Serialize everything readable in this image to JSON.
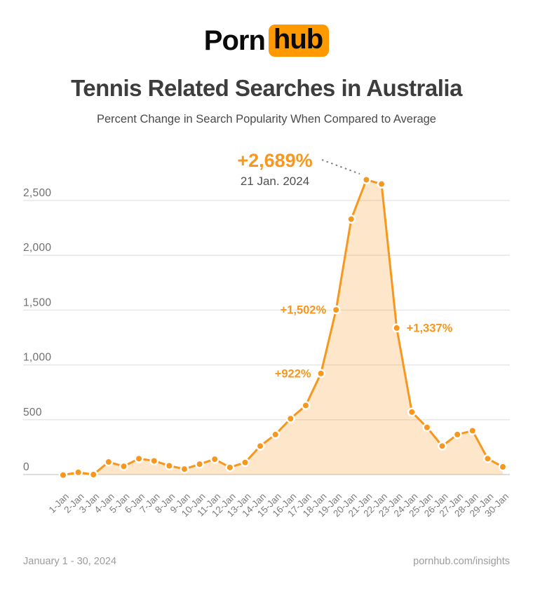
{
  "logo": {
    "part1": "Porn",
    "part2": "hub"
  },
  "header": {
    "title": "Tennis Related Searches in Australia",
    "subtitle": "Percent Change in Search Popularity When Compared to Average"
  },
  "footer": {
    "date_range": "January 1 - 30, 2024",
    "site": "pornhub.com/insights"
  },
  "colors": {
    "accent_orange": "#F7971D",
    "logo_orange": "#FF9900",
    "area_fill": "rgba(247,151,29,0.24)",
    "title_text": "#3D3D3D",
    "subtitle_text": "#4A4A4A",
    "axis_label_text": "#6F6F6F",
    "x_tick_text": "#7C7C7C",
    "footer_text": "#9C9C9C",
    "grid_line": "#E4E4E4",
    "zero_line": "#CBCBCB",
    "annotation_date_text": "#4F4F4F",
    "dash_connector": "#7F7F7F",
    "point_stroke": "#FFFFFF"
  },
  "chart_data": {
    "type": "area",
    "title": "Tennis Related Searches in Australia",
    "subtitle": "Percent Change in Search Popularity When Compared to Average",
    "x": [
      "1-Jan",
      "2-Jan",
      "3-Jan",
      "4-Jan",
      "5-Jan",
      "6-Jan",
      "7-Jan",
      "8-Jan",
      "9-Jan",
      "10-Jan",
      "11-Jan",
      "12-Jan",
      "13-Jan",
      "14-Jan",
      "15-Jan",
      "16-Jan",
      "17-Jan",
      "18-Jan",
      "19-Jan",
      "20-Jan",
      "21-Jan",
      "22-Jan",
      "23-Jan",
      "24-Jan",
      "25-Jan",
      "26-Jan",
      "27-Jan",
      "28-Jan",
      "29-Jan",
      "30-Jan"
    ],
    "values": [
      -5,
      20,
      0,
      115,
      75,
      145,
      125,
      80,
      50,
      95,
      140,
      65,
      110,
      260,
      365,
      510,
      630,
      922,
      1502,
      2330,
      2689,
      2650,
      1337,
      570,
      430,
      260,
      365,
      400,
      145,
      70
    ],
    "ylim": [
      0,
      2500
    ],
    "grid": true,
    "legend": "none",
    "yticks": [
      {
        "value": 0,
        "label": "0"
      },
      {
        "value": 500,
        "label": "500"
      },
      {
        "value": 1000,
        "label": "1,000"
      },
      {
        "value": 1500,
        "label": "1,500"
      },
      {
        "value": 2000,
        "label": "2,000"
      },
      {
        "value": 2500,
        "label": "2,500"
      }
    ],
    "peak_annotation": {
      "label": "+2,689%",
      "date": "21 Jan. 2024",
      "category": "21-Jan",
      "value": 2689
    },
    "annotations": [
      {
        "label": "+922%",
        "category": "18-Jan",
        "value": 922,
        "side": "left"
      },
      {
        "label": "+1,502%",
        "category": "19-Jan",
        "value": 1502,
        "side": "left"
      },
      {
        "label": "+1,337%",
        "category": "23-Jan",
        "value": 1337,
        "side": "right"
      }
    ]
  }
}
